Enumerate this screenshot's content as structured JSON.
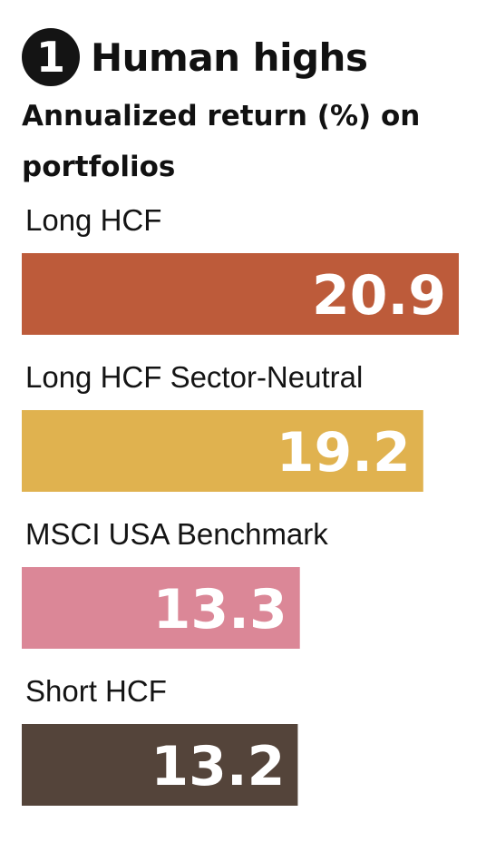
{
  "chart_data": {
    "type": "bar",
    "orientation": "horizontal",
    "number_badge": "1",
    "title": "Human highs",
    "subtitle": "Annualized return (%) on portfolios",
    "categories": [
      "Long HCF",
      "Long HCF Sector-Neutral",
      "MSCI USA Benchmark",
      "Short HCF"
    ],
    "values": [
      20.9,
      19.2,
      13.3,
      13.2
    ],
    "value_labels": [
      "20.9",
      "19.2",
      "13.3",
      "13.2"
    ],
    "colors": [
      "#BD5B3A",
      "#E0B24F",
      "#DB8797",
      "#54443A"
    ],
    "xlim": [
      0,
      21.5
    ],
    "grid": false,
    "legend": "none"
  }
}
